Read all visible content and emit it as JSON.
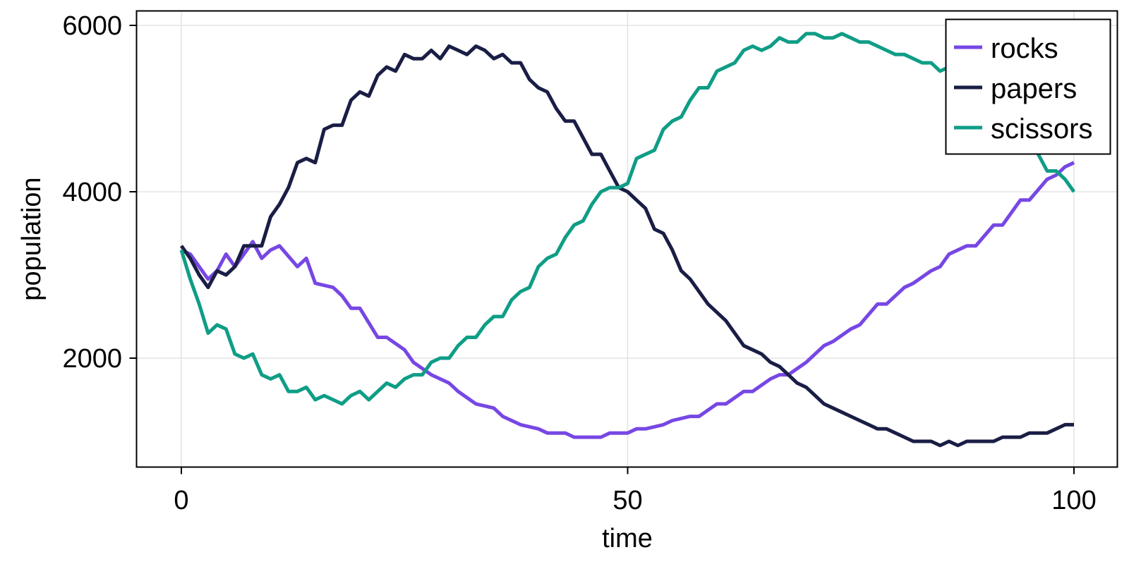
{
  "chart_data": {
    "type": "line",
    "title": "",
    "xlabel": "time",
    "ylabel": "population",
    "xlim": [
      -5,
      105
    ],
    "ylim": [
      750,
      6080
    ],
    "xticks": [
      0,
      50,
      100
    ],
    "xtick_labels": [
      "0",
      "50",
      "100"
    ],
    "yticks": [
      2000,
      4000,
      6000
    ],
    "ytick_labels": [
      "2000",
      "4000",
      "6000"
    ],
    "grid": true,
    "legend_position": "top-right",
    "series": [
      {
        "name": "rocks",
        "color": "#7747E4",
        "x": [
          0,
          1,
          3,
          4,
          5,
          6,
          7,
          8,
          9,
          10,
          11,
          13,
          14,
          15,
          17,
          18,
          19,
          20,
          22,
          23,
          25,
          26,
          28,
          29,
          30,
          31,
          33,
          35,
          36,
          38,
          40,
          41,
          43,
          44,
          46,
          47,
          48,
          50,
          51,
          52,
          54,
          55,
          57,
          58,
          60,
          61,
          63,
          64,
          66,
          67,
          68,
          70,
          71,
          72,
          73,
          75,
          76,
          78,
          79,
          81,
          82,
          84,
          85,
          86,
          88,
          89,
          91,
          92,
          94,
          95,
          97,
          98,
          99,
          100
        ],
        "y": [
          3300,
          3250,
          2950,
          3050,
          3250,
          3100,
          3250,
          3400,
          3200,
          3300,
          3350,
          3100,
          3200,
          2900,
          2850,
          2750,
          2600,
          2600,
          2250,
          2250,
          2100,
          1950,
          1800,
          1750,
          1700,
          1600,
          1450,
          1400,
          1300,
          1200,
          1150,
          1100,
          1100,
          1050,
          1050,
          1050,
          1100,
          1100,
          1150,
          1150,
          1200,
          1250,
          1300,
          1300,
          1450,
          1450,
          1600,
          1600,
          1750,
          1800,
          1800,
          1950,
          2050,
          2150,
          2200,
          2350,
          2400,
          2650,
          2650,
          2850,
          2900,
          3050,
          3100,
          3250,
          3350,
          3350,
          3600,
          3600,
          3900,
          3900,
          4150,
          4200,
          4300,
          4350
        ]
      },
      {
        "name": "papers",
        "color": "#1A1E45",
        "x": [
          0,
          1,
          2,
          3,
          4,
          5,
          6,
          7,
          8,
          9,
          10,
          11,
          12,
          13,
          14,
          15,
          16,
          17,
          18,
          19,
          20,
          21,
          22,
          23,
          24,
          25,
          26,
          27,
          28,
          29,
          30,
          31,
          32,
          33,
          34,
          35,
          36,
          37,
          38,
          39,
          40,
          41,
          42,
          43,
          44,
          45,
          46,
          47,
          48,
          49,
          50,
          51,
          52,
          53,
          54,
          55,
          56,
          57,
          58,
          59,
          60,
          61,
          62,
          63,
          64,
          65,
          66,
          67,
          68,
          69,
          70,
          71,
          72,
          73,
          74,
          75,
          76,
          77,
          78,
          79,
          80,
          81,
          82,
          83,
          84,
          85,
          86,
          87,
          88,
          89,
          90,
          91,
          92,
          93,
          94,
          95,
          96,
          97,
          98,
          99,
          100
        ],
        "y": [
          3350,
          3200,
          3000,
          2850,
          3050,
          3000,
          3100,
          3350,
          3350,
          3350,
          3700,
          3850,
          4050,
          4350,
          4400,
          4350,
          4750,
          4800,
          4800,
          5100,
          5200,
          5150,
          5400,
          5500,
          5450,
          5650,
          5600,
          5600,
          5700,
          5600,
          5750,
          5700,
          5650,
          5750,
          5700,
          5600,
          5650,
          5550,
          5550,
          5350,
          5250,
          5200,
          5000,
          4850,
          4850,
          4650,
          4450,
          4450,
          4250,
          4050,
          4000,
          3900,
          3800,
          3550,
          3500,
          3300,
          3050,
          2950,
          2800,
          2650,
          2550,
          2450,
          2300,
          2150,
          2100,
          2050,
          1950,
          1900,
          1800,
          1700,
          1650,
          1550,
          1450,
          1400,
          1350,
          1300,
          1250,
          1200,
          1150,
          1150,
          1100,
          1050,
          1000,
          1000,
          1000,
          950,
          1000,
          950,
          1000,
          1000,
          1000,
          1000,
          1050,
          1050,
          1050,
          1100,
          1100,
          1100,
          1150,
          1200,
          1200
        ]
      },
      {
        "name": "scissors",
        "color": "#0F9D86",
        "x": [
          0,
          1,
          2,
          3,
          4,
          5,
          6,
          7,
          8,
          9,
          10,
          11,
          12,
          13,
          14,
          15,
          16,
          17,
          18,
          19,
          20,
          21,
          22,
          23,
          24,
          25,
          26,
          27,
          28,
          29,
          30,
          31,
          32,
          33,
          34,
          35,
          36,
          37,
          38,
          39,
          40,
          41,
          42,
          43,
          44,
          45,
          46,
          47,
          48,
          49,
          50,
          51,
          52,
          53,
          54,
          55,
          56,
          57,
          58,
          59,
          60,
          61,
          62,
          63,
          64,
          65,
          66,
          67,
          68,
          69,
          70,
          71,
          72,
          73,
          74,
          75,
          76,
          77,
          78,
          79,
          80,
          81,
          82,
          83,
          84,
          85,
          86,
          87,
          88,
          89,
          90,
          91,
          92,
          93,
          94,
          95,
          96,
          97,
          98,
          99,
          100
        ],
        "y": [
          3300,
          2950,
          2650,
          2300,
          2400,
          2350,
          2050,
          2000,
          2050,
          1800,
          1750,
          1800,
          1600,
          1600,
          1650,
          1500,
          1550,
          1500,
          1450,
          1550,
          1600,
          1500,
          1600,
          1700,
          1650,
          1750,
          1800,
          1800,
          1950,
          2000,
          2000,
          2150,
          2250,
          2250,
          2400,
          2500,
          2500,
          2700,
          2800,
          2850,
          3100,
          3200,
          3250,
          3450,
          3600,
          3650,
          3850,
          4000,
          4050,
          4050,
          4100,
          4400,
          4450,
          4500,
          4750,
          4850,
          4900,
          5100,
          5250,
          5250,
          5450,
          5500,
          5550,
          5700,
          5750,
          5700,
          5750,
          5850,
          5800,
          5800,
          5900,
          5900,
          5850,
          5850,
          5900,
          5850,
          5800,
          5800,
          5750,
          5700,
          5650,
          5650,
          5600,
          5550,
          5550,
          5450,
          5500,
          5450,
          5350,
          5300,
          5300,
          5200,
          5100,
          5000,
          4900,
          4750,
          4450,
          4250,
          4250,
          4150,
          4000
        ]
      }
    ]
  },
  "legend": {
    "items": [
      {
        "label": "rocks",
        "color": "#7747E4"
      },
      {
        "label": "papers",
        "color": "#1A1E45"
      },
      {
        "label": "scissors",
        "color": "#0F9D86"
      }
    ]
  }
}
